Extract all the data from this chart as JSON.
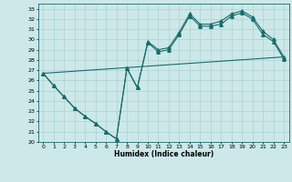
{
  "xlabel": "Humidex (Indice chaleur)",
  "bg_color": "#cce8e8",
  "line_color": "#1a6b6b",
  "xlim": [
    -0.5,
    23.5
  ],
  "ylim": [
    20,
    33.5
  ],
  "xticks": [
    0,
    1,
    2,
    3,
    4,
    5,
    6,
    7,
    8,
    9,
    10,
    11,
    12,
    13,
    14,
    15,
    16,
    17,
    18,
    19,
    20,
    21,
    22,
    23
  ],
  "yticks": [
    20,
    21,
    22,
    23,
    24,
    25,
    26,
    27,
    28,
    29,
    30,
    31,
    32,
    33
  ],
  "series1_x": [
    0,
    1,
    2,
    3,
    4,
    5,
    6,
    7,
    8,
    9,
    10,
    11,
    12,
    13,
    14,
    15,
    16,
    17,
    18,
    19,
    20,
    21,
    22,
    23
  ],
  "series1_y": [
    26.7,
    25.5,
    24.4,
    23.3,
    22.5,
    21.8,
    21.0,
    20.3,
    27.2,
    25.3,
    29.8,
    29.0,
    29.2,
    30.7,
    32.5,
    31.5,
    31.5,
    31.8,
    32.5,
    32.8,
    32.2,
    30.8,
    30.0,
    28.3
  ],
  "series2_x": [
    0,
    1,
    2,
    3,
    4,
    5,
    6,
    7,
    8,
    9,
    10,
    11,
    12,
    13,
    14,
    15,
    16,
    17,
    18,
    19,
    20,
    21,
    22,
    23
  ],
  "series2_y": [
    26.7,
    25.5,
    24.4,
    23.3,
    22.5,
    21.8,
    21.0,
    20.3,
    27.2,
    25.3,
    29.7,
    28.8,
    29.0,
    30.5,
    32.3,
    31.3,
    31.3,
    31.5,
    32.3,
    32.6,
    32.0,
    30.5,
    29.8,
    28.1
  ],
  "series3_x": [
    0,
    23
  ],
  "series3_y": [
    26.7,
    28.3
  ]
}
